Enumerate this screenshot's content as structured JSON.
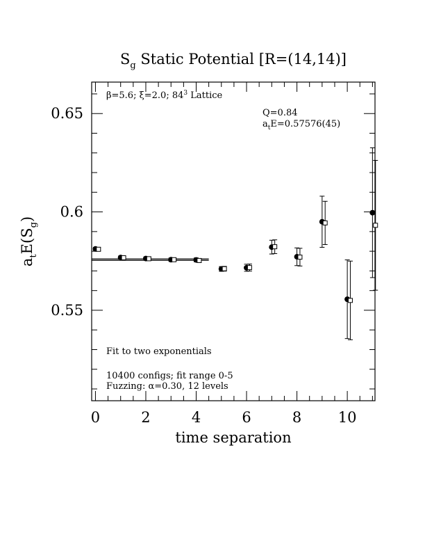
{
  "chart_data": {
    "type": "scatter",
    "title": "S",
    "title_sub": "g",
    "title_rest": " Static Potential [R=(14,14)]",
    "xlabel": "time separation",
    "ylabel_main": "a",
    "ylabel_sub1": "t",
    "ylabel_mid": "E(S",
    "ylabel_sub2": "g",
    "ylabel_end": ")",
    "xlim": [
      -0.15,
      11.1
    ],
    "ylim": [
      0.504,
      0.666
    ],
    "x_ticks": [
      0,
      2,
      4,
      6,
      8,
      10
    ],
    "x_tick_labels": [
      "0",
      "2",
      "4",
      "6",
      "8",
      "10"
    ],
    "y_ticks": [
      0.55,
      0.6,
      0.65
    ],
    "y_tick_labels": [
      "0.55",
      "0.6",
      "0.65"
    ],
    "annotations": {
      "lattice_pre": "β=5.6; ξ=2.0; 84",
      "lattice_sup": "3",
      "lattice_post": " Lattice",
      "q": "Q=0.84",
      "fit_a": "a",
      "fit_sub": "t",
      "fit_rest": "E=0.57576(45)",
      "fit_type": "Fit to two exponentials",
      "configs": "10400 configs; fit range 0-5",
      "fuzzing": "Fuzzing: α=0.30, 12 levels"
    },
    "fit": {
      "x_range": [
        -0.15,
        4.5
      ],
      "value": 0.57576,
      "error": 0.00045
    },
    "series": [
      {
        "marker": "filled-circle",
        "x": [
          0,
          1,
          2,
          3,
          4,
          5,
          6,
          7,
          8,
          9,
          10,
          11
        ],
        "y": [
          0.5812,
          0.5768,
          0.5763,
          0.5757,
          0.5756,
          0.571,
          0.5716,
          0.5821,
          0.5772,
          0.595,
          0.5556,
          0.5996
        ],
        "err": [
          0.0008,
          0.0008,
          0.0008,
          0.0009,
          0.001,
          0.0012,
          0.0018,
          0.0035,
          0.0045,
          0.013,
          0.02,
          0.033
        ]
      },
      {
        "marker": "open-square",
        "x": [
          0.12,
          1.12,
          2.12,
          3.12,
          4.12,
          5.12,
          6.12,
          7.12,
          8.12,
          9.12,
          10.12,
          11.12
        ],
        "y": [
          0.581,
          0.5767,
          0.5762,
          0.5757,
          0.5753,
          0.5711,
          0.5717,
          0.5823,
          0.577,
          0.5944,
          0.555,
          0.5932
        ],
        "err": [
          0.0008,
          0.0008,
          0.0008,
          0.0009,
          0.001,
          0.0012,
          0.0018,
          0.0035,
          0.0045,
          0.011,
          0.02,
          0.033
        ]
      }
    ]
  }
}
